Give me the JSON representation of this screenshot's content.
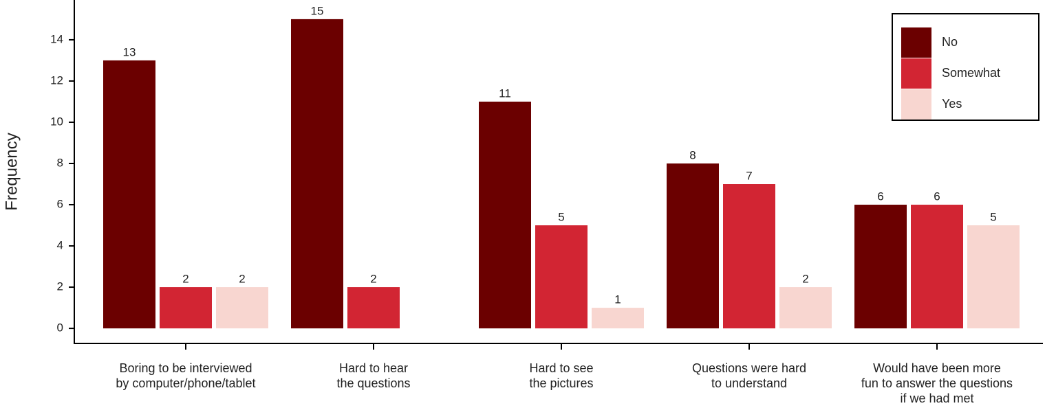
{
  "chart_data": {
    "type": "bar",
    "y_label": "Frequency",
    "categories": [
      [
        "Boring to be interviewed",
        "by computer/phone/tablet"
      ],
      [
        "Hard to hear",
        "the questions"
      ],
      [
        "Hard to see",
        "the pictures"
      ],
      [
        "Questions were hard",
        "to understand"
      ],
      [
        "Would have been more",
        "fun to answer the questions",
        "if we had met"
      ]
    ],
    "series": [
      {
        "name": "No",
        "color": "#6b0000",
        "values": [
          13,
          15,
          11,
          8,
          6
        ]
      },
      {
        "name": "Somewhat",
        "color": "#d22533",
        "values": [
          2,
          2,
          5,
          7,
          6
        ]
      },
      {
        "name": "Yes",
        "color": "#f8d6d0",
        "values": [
          2,
          null,
          1,
          2,
          5
        ]
      }
    ],
    "ylim": [
      -0.73,
      15.93
    ],
    "yticks": [
      0,
      2,
      4,
      6,
      8,
      10,
      12,
      14
    ],
    "legend": "top-right"
  }
}
